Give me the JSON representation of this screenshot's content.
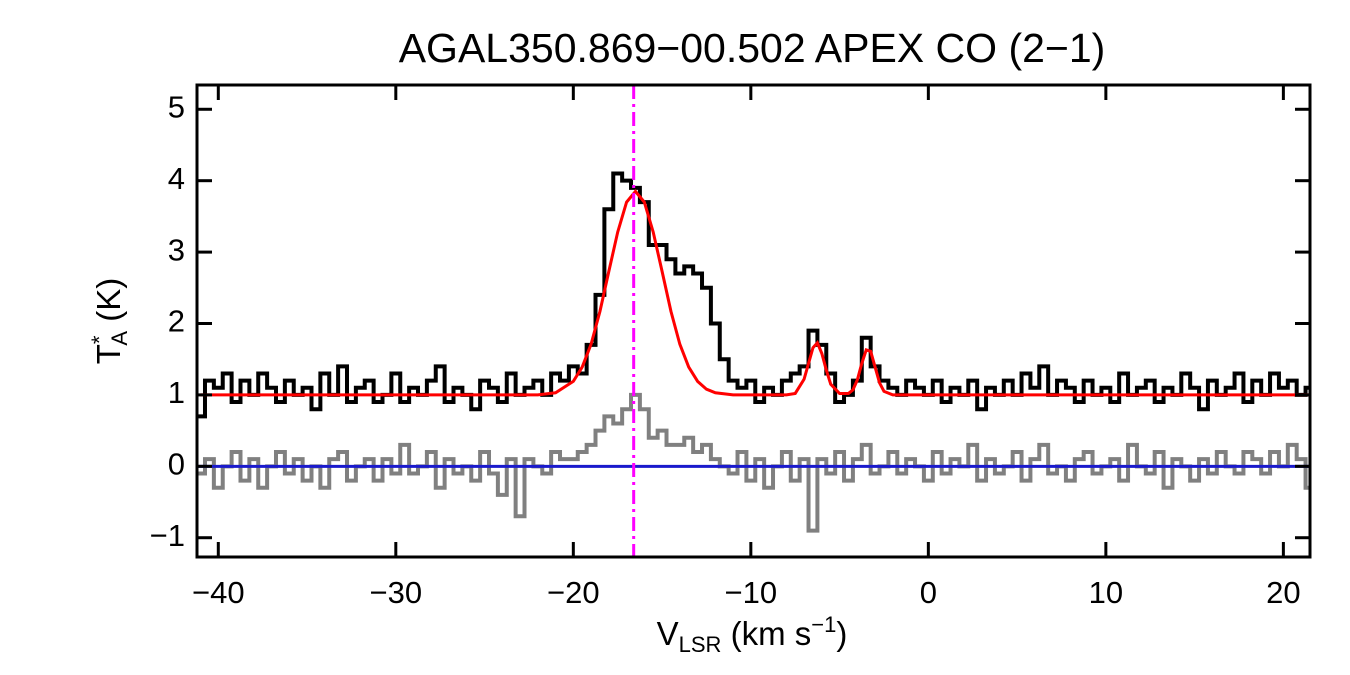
{
  "chart_data": {
    "type": "line",
    "title": "AGAL350.869−00.502  APEX CO (2−1)",
    "xlabel": {
      "main": "V",
      "sub": "LSR",
      "rest": " (km s",
      "sup": "−1",
      "end": ")"
    },
    "ylabel": {
      "main": "T",
      "sup": "*",
      "sub": "A",
      "rest": " (K)"
    },
    "xlim": [
      -41.2,
      21.5
    ],
    "ylim": [
      -1.27,
      5.34
    ],
    "xticks": [
      {
        "value": -40,
        "label": "−40"
      },
      {
        "value": -30,
        "label": "−30"
      },
      {
        "value": -20,
        "label": "−20"
      },
      {
        "value": -10,
        "label": "−10"
      },
      0,
      10,
      20
    ],
    "yticks": [
      {
        "value": -1,
        "label": "−1"
      },
      0,
      1,
      2,
      3,
      4,
      5
    ],
    "x": [
      -41,
      -40.5,
      -40,
      -39.5,
      -39,
      -38.5,
      -38,
      -37.5,
      -37,
      -36.5,
      -36,
      -35.5,
      -35,
      -34.5,
      -34,
      -33.5,
      -33,
      -32.5,
      -32,
      -31.5,
      -31,
      -30.5,
      -30,
      -29.5,
      -29,
      -28.5,
      -28,
      -27.5,
      -27,
      -26.5,
      -26,
      -25.5,
      -25,
      -24.5,
      -24,
      -23.5,
      -23,
      -22.5,
      -22,
      -21.5,
      -21,
      -20.5,
      -20,
      -19.5,
      -19,
      -18.5,
      -18,
      -17.5,
      -17,
      -16.5,
      -16,
      -15.5,
      -15,
      -14.5,
      -14,
      -13.5,
      -13,
      -12.5,
      -12,
      -11.5,
      -11,
      -10.5,
      -10,
      -9.5,
      -9,
      -8.5,
      -8,
      -7.5,
      -7,
      -6.5,
      -6,
      -5.5,
      -5,
      -4.5,
      -4,
      -3.5,
      -3,
      -2.5,
      -2,
      -1.5,
      -1,
      -0.5,
      0,
      0.5,
      1,
      1.5,
      2,
      2.5,
      3,
      3.5,
      4,
      4.5,
      5,
      5.5,
      6,
      6.5,
      7,
      7.5,
      8,
      8.5,
      9,
      9.5,
      10,
      10.5,
      11,
      11.5,
      12,
      12.5,
      13,
      13.5,
      14,
      14.5,
      15,
      15.5,
      16,
      16.5,
      17,
      17.5,
      18,
      18.5,
      19,
      19.5,
      20,
      20.5,
      21,
      21.5
    ],
    "series": [
      {
        "color": "#808080",
        "step": true,
        "values": [
          -0.1,
          0.1,
          -0.3,
          0.0,
          0.2,
          -0.2,
          0.1,
          -0.3,
          0.0,
          0.2,
          -0.1,
          0.1,
          -0.2,
          0.0,
          -0.3,
          0.1,
          0.2,
          -0.2,
          0.0,
          0.1,
          -0.2,
          0.1,
          -0.1,
          0.3,
          -0.1,
          0.0,
          0.2,
          -0.3,
          0.1,
          -0.1,
          0.0,
          -0.2,
          0.2,
          -0.1,
          -0.4,
          0.1,
          -0.7,
          0.1,
          0.0,
          -0.1,
          0.2,
          0.1,
          0.1,
          0.2,
          0.3,
          0.5,
          0.7,
          0.6,
          0.8,
          1.0,
          0.8,
          0.4,
          0.5,
          0.3,
          0.3,
          0.4,
          0.2,
          0.3,
          0.1,
          0.0,
          -0.1,
          0.2,
          -0.2,
          0.1,
          -0.3,
          0.0,
          0.2,
          -0.2,
          0.1,
          -0.9,
          0.1,
          -0.1,
          0.2,
          -0.2,
          0.1,
          0.3,
          -0.1,
          0.0,
          0.2,
          -0.1,
          0.1,
          0.0,
          -0.2,
          0.2,
          -0.1,
          0.1,
          0.0,
          0.3,
          -0.2,
          0.1,
          -0.1,
          0.0,
          0.2,
          -0.2,
          0.1,
          0.3,
          -0.1,
          0.0,
          -0.2,
          0.1,
          0.2,
          -0.1,
          0.0,
          0.1,
          -0.2,
          0.3,
          0.0,
          -0.1,
          0.2,
          -0.3,
          0.1,
          0.0,
          -0.2,
          0.1,
          -0.1,
          0.2,
          0.0,
          -0.1,
          0.2,
          0.1,
          -0.1,
          0.2,
          0.0,
          0.3,
          0.1,
          -0.3
        ]
      },
      {
        "color": "#000000",
        "step": true,
        "values": [
          0.7,
          1.2,
          1.1,
          1.3,
          0.9,
          1.2,
          1.0,
          1.3,
          1.1,
          0.9,
          1.2,
          1.0,
          1.1,
          0.8,
          1.3,
          1.0,
          1.4,
          0.9,
          1.1,
          1.2,
          0.9,
          1.0,
          1.3,
          0.9,
          1.1,
          1.0,
          1.2,
          1.4,
          0.9,
          1.1,
          1.0,
          0.8,
          1.2,
          1.1,
          0.9,
          1.3,
          1.0,
          1.1,
          1.2,
          1.0,
          1.3,
          1.2,
          1.4,
          1.3,
          1.7,
          2.4,
          3.6,
          4.1,
          4.0,
          3.9,
          3.7,
          3.1,
          3.1,
          2.9,
          2.7,
          2.8,
          2.7,
          2.5,
          2.0,
          1.5,
          1.2,
          1.1,
          1.2,
          0.9,
          1.1,
          1.0,
          1.2,
          1.3,
          1.4,
          1.9,
          1.7,
          1.3,
          0.9,
          1.0,
          1.2,
          1.8,
          1.4,
          1.2,
          1.1,
          1.0,
          1.2,
          1.1,
          1.0,
          1.2,
          0.9,
          1.1,
          1.0,
          1.2,
          0.8,
          1.1,
          1.0,
          1.2,
          1.0,
          1.3,
          1.1,
          1.4,
          1.0,
          1.2,
          1.1,
          0.9,
          1.2,
          1.0,
          1.1,
          0.9,
          1.3,
          1.0,
          1.1,
          1.2,
          0.9,
          1.1,
          1.0,
          1.3,
          1.1,
          0.8,
          1.2,
          1.0,
          1.1,
          1.3,
          0.9,
          1.2,
          1.0,
          1.3,
          1.1,
          1.2,
          1.0,
          1.1
        ]
      },
      {
        "color": "#ff0000",
        "step": false,
        "x": [
          -41,
          -24,
          -22,
          -21,
          -20,
          -19.5,
          -19,
          -18.5,
          -18,
          -17.5,
          -17,
          -16.5,
          -16,
          -15.5,
          -15,
          -14.5,
          -14,
          -13.5,
          -13,
          -12.5,
          -12,
          -11,
          -8,
          -7.5,
          -7,
          -6.75,
          -6.5,
          -6.25,
          -6,
          -5.75,
          -5.5,
          -5,
          -4.5,
          -4.25,
          -4,
          -3.75,
          -3.5,
          -3.25,
          -3,
          -2.75,
          -2.5,
          -2,
          21.5
        ],
        "values": [
          1.0,
          1.0,
          1.0,
          1.03,
          1.19,
          1.39,
          1.71,
          2.17,
          2.73,
          3.28,
          3.7,
          3.85,
          3.7,
          3.28,
          2.73,
          2.17,
          1.71,
          1.39,
          1.19,
          1.08,
          1.03,
          1.0,
          1.0,
          1.02,
          1.22,
          1.44,
          1.66,
          1.73,
          1.58,
          1.35,
          1.15,
          1.02,
          1.02,
          1.07,
          1.21,
          1.44,
          1.63,
          1.61,
          1.39,
          1.17,
          1.05,
          1.0,
          1.0
        ]
      }
    ],
    "hline": {
      "y": 0,
      "color": "#1a1acc"
    },
    "vline": {
      "x": -16.6,
      "color": "#ff00ff"
    }
  }
}
